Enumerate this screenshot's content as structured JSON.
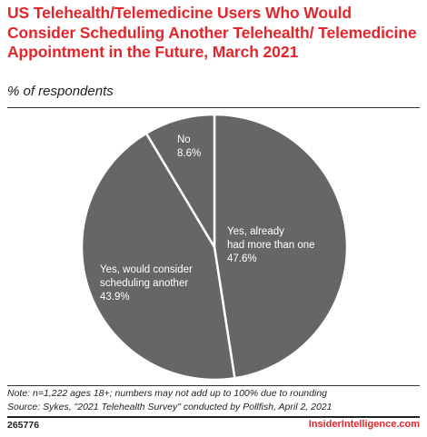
{
  "header": {
    "title": "US Telehealth/Telemedicine Users Who Would Consider Scheduling Another Telehealth/ Telemedicine Appointment in the Future, March 2021",
    "subtitle": "% of respondents"
  },
  "footer": {
    "note": "Note: n=1,222 ages 18+; numbers may not add up to 100% due to rounding",
    "source": "Source: Sykes, \"2021 Telehealth Survey\" conducted by Pollfish, April 2, 2021",
    "chart_id": "265776",
    "brand": "InsiderIntelligence.com"
  },
  "colors": {
    "slice": "#666666",
    "separator": "#ffffff",
    "title": "#e3262b"
  },
  "chart_data": {
    "type": "pie",
    "title": "US Telehealth/Telemedicine Users Who Would Consider Scheduling Another Telehealth/ Telemedicine Appointment in the Future, March 2021",
    "subtitle": "% of respondents",
    "slices": [
      {
        "lines": [
          "Yes, already",
          "had more than one"
        ],
        "value": 47.6,
        "value_label": "47.6%"
      },
      {
        "lines": [
          "Yes, would consider",
          "scheduling another"
        ],
        "value": 43.9,
        "value_label": "43.9%"
      },
      {
        "lines": [
          "No"
        ],
        "value": 8.6,
        "value_label": "8.6%"
      }
    ],
    "start": "12 o'clock",
    "direction": "clockwise",
    "legend": "none"
  }
}
